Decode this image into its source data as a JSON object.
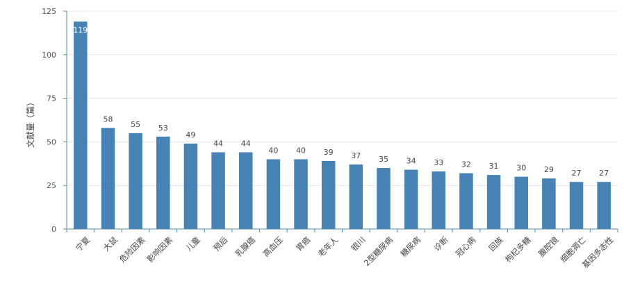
{
  "chart_data": {
    "type": "bar",
    "title": "",
    "xlabel": "",
    "ylabel": "文献量（篇）",
    "ylim": [
      0,
      125
    ],
    "yticks": [
      0,
      25,
      50,
      75,
      100,
      125
    ],
    "grid": true,
    "bar_color": "#4682b4",
    "categories": [
      "宁夏",
      "大鼠",
      "危险因素",
      "影响因素",
      "儿童",
      "预后",
      "乳腺癌",
      "高血压",
      "胃癌",
      "老年人",
      "银川",
      "2型糖尿病",
      "糖尿病",
      "诊断",
      "冠心病",
      "回族",
      "枸杞多糖",
      "腹腔镜",
      "细胞凋亡",
      "基因多态性"
    ],
    "values": [
      119,
      58,
      55,
      53,
      49,
      44,
      44,
      40,
      40,
      39,
      37,
      35,
      34,
      33,
      32,
      31,
      30,
      29,
      27,
      27
    ]
  }
}
